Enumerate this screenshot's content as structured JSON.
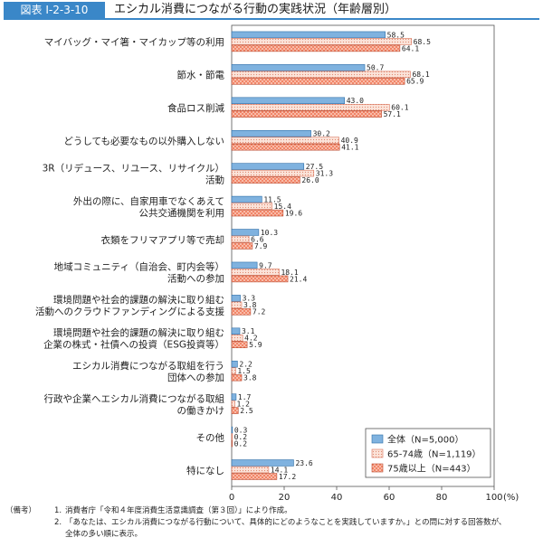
{
  "figure": {
    "badge": "図表 I-2-3-10",
    "title": "エシカル消費につながる行動の実践状況（年齢層別）"
  },
  "chart_data": {
    "type": "bar",
    "orientation": "horizontal",
    "categories": [
      [
        "マイバッグ・マイ箸・マイカップ等の利用"
      ],
      [
        "節水・節電"
      ],
      [
        "食品ロス削減"
      ],
      [
        "どうしても必要なもの以外購入しない"
      ],
      [
        "3R（リデュース、リユース、リサイクル）",
        "活動"
      ],
      [
        "外出の際に、自家用車でなくあえて",
        "公共交通機関を利用"
      ],
      [
        "衣類をフリマアプリ等で売却"
      ],
      [
        "地域コミュニティ（自治会、町内会等）",
        "活動への参加"
      ],
      [
        "環境問題や社会的課題の解決に取り組む",
        "活動へのクラウドファンディングによる支援"
      ],
      [
        "環境問題や社会的課題の解決に取り組む",
        "企業の株式・社債への投資（ESG投資等）"
      ],
      [
        "エシカル消費につながる取組を行う",
        "団体への参加"
      ],
      [
        "行政や企業へエシカル消費につながる取組",
        "の働きかけ"
      ],
      [
        "その他"
      ],
      [
        "特になし"
      ]
    ],
    "series": [
      {
        "name": "全体（N=5,000）",
        "color": "#7fb2df",
        "stroke": "#2f6fa8",
        "pattern": "solid",
        "values": [
          58.5,
          50.7,
          43.0,
          30.2,
          27.5,
          11.5,
          10.3,
          9.7,
          3.3,
          3.1,
          2.2,
          1.7,
          0.3,
          23.6
        ],
        "labels": [
          "58.5",
          "50.7",
          "43.0",
          "30.2",
          "27.5",
          "11.5",
          "10.3",
          "9.7",
          "3.3",
          "3.1",
          "2.2",
          "1.7",
          "0.3",
          "23.6"
        ]
      },
      {
        "name": "65-74歳（N=1,119）",
        "color": "#fbe3d9",
        "stroke": "#d9735a",
        "pattern": "dots",
        "values": [
          68.5,
          68.1,
          60.1,
          40.9,
          31.3,
          15.4,
          6.6,
          18.1,
          3.8,
          4.2,
          1.5,
          1.2,
          0.2,
          14.1
        ],
        "labels": [
          "68.5",
          "68.1",
          "60.1",
          "40.9",
          "31.3",
          "15.4",
          "6.6",
          "18.1",
          "3.8",
          "4.2",
          "1.5",
          "1.2",
          "0.2",
          "14.1"
        ]
      },
      {
        "name": "75歳以上（N=443）",
        "color": "#f07a5a",
        "stroke": "#b94a30",
        "pattern": "cross",
        "values": [
          64.1,
          65.9,
          57.1,
          41.1,
          26.0,
          19.6,
          7.9,
          21.4,
          7.2,
          5.9,
          3.8,
          2.5,
          0.2,
          17.2
        ],
        "labels": [
          "64.1",
          "65.9",
          "57.1",
          "41.1",
          "26.0",
          "19.6",
          "7.9",
          "21.4",
          "7.2",
          "5.9",
          "3.8",
          "2.5",
          "0.2",
          "17.2"
        ]
      }
    ],
    "xlim": [
      0,
      100
    ],
    "xticks": [
      0,
      20,
      40,
      60,
      80,
      100
    ],
    "xtick_labels": [
      "0",
      "20",
      "40",
      "60",
      "80",
      "100"
    ],
    "x_unit": "(%)",
    "grid": false,
    "legend_position": "bottom-right"
  },
  "notes": {
    "label": "（備考）",
    "items": [
      {
        "num": "1.",
        "lines": [
          "消費者庁「令和４年度消費生活意識調査（第３回）」により作成。"
        ]
      },
      {
        "num": "2.",
        "lines": [
          "「あなたは、エシカル消費につながる行動について、具体的にどのようなことを実践していますか。」との問に対する回答数が、",
          "全体の多い順に表示。"
        ]
      }
    ]
  }
}
